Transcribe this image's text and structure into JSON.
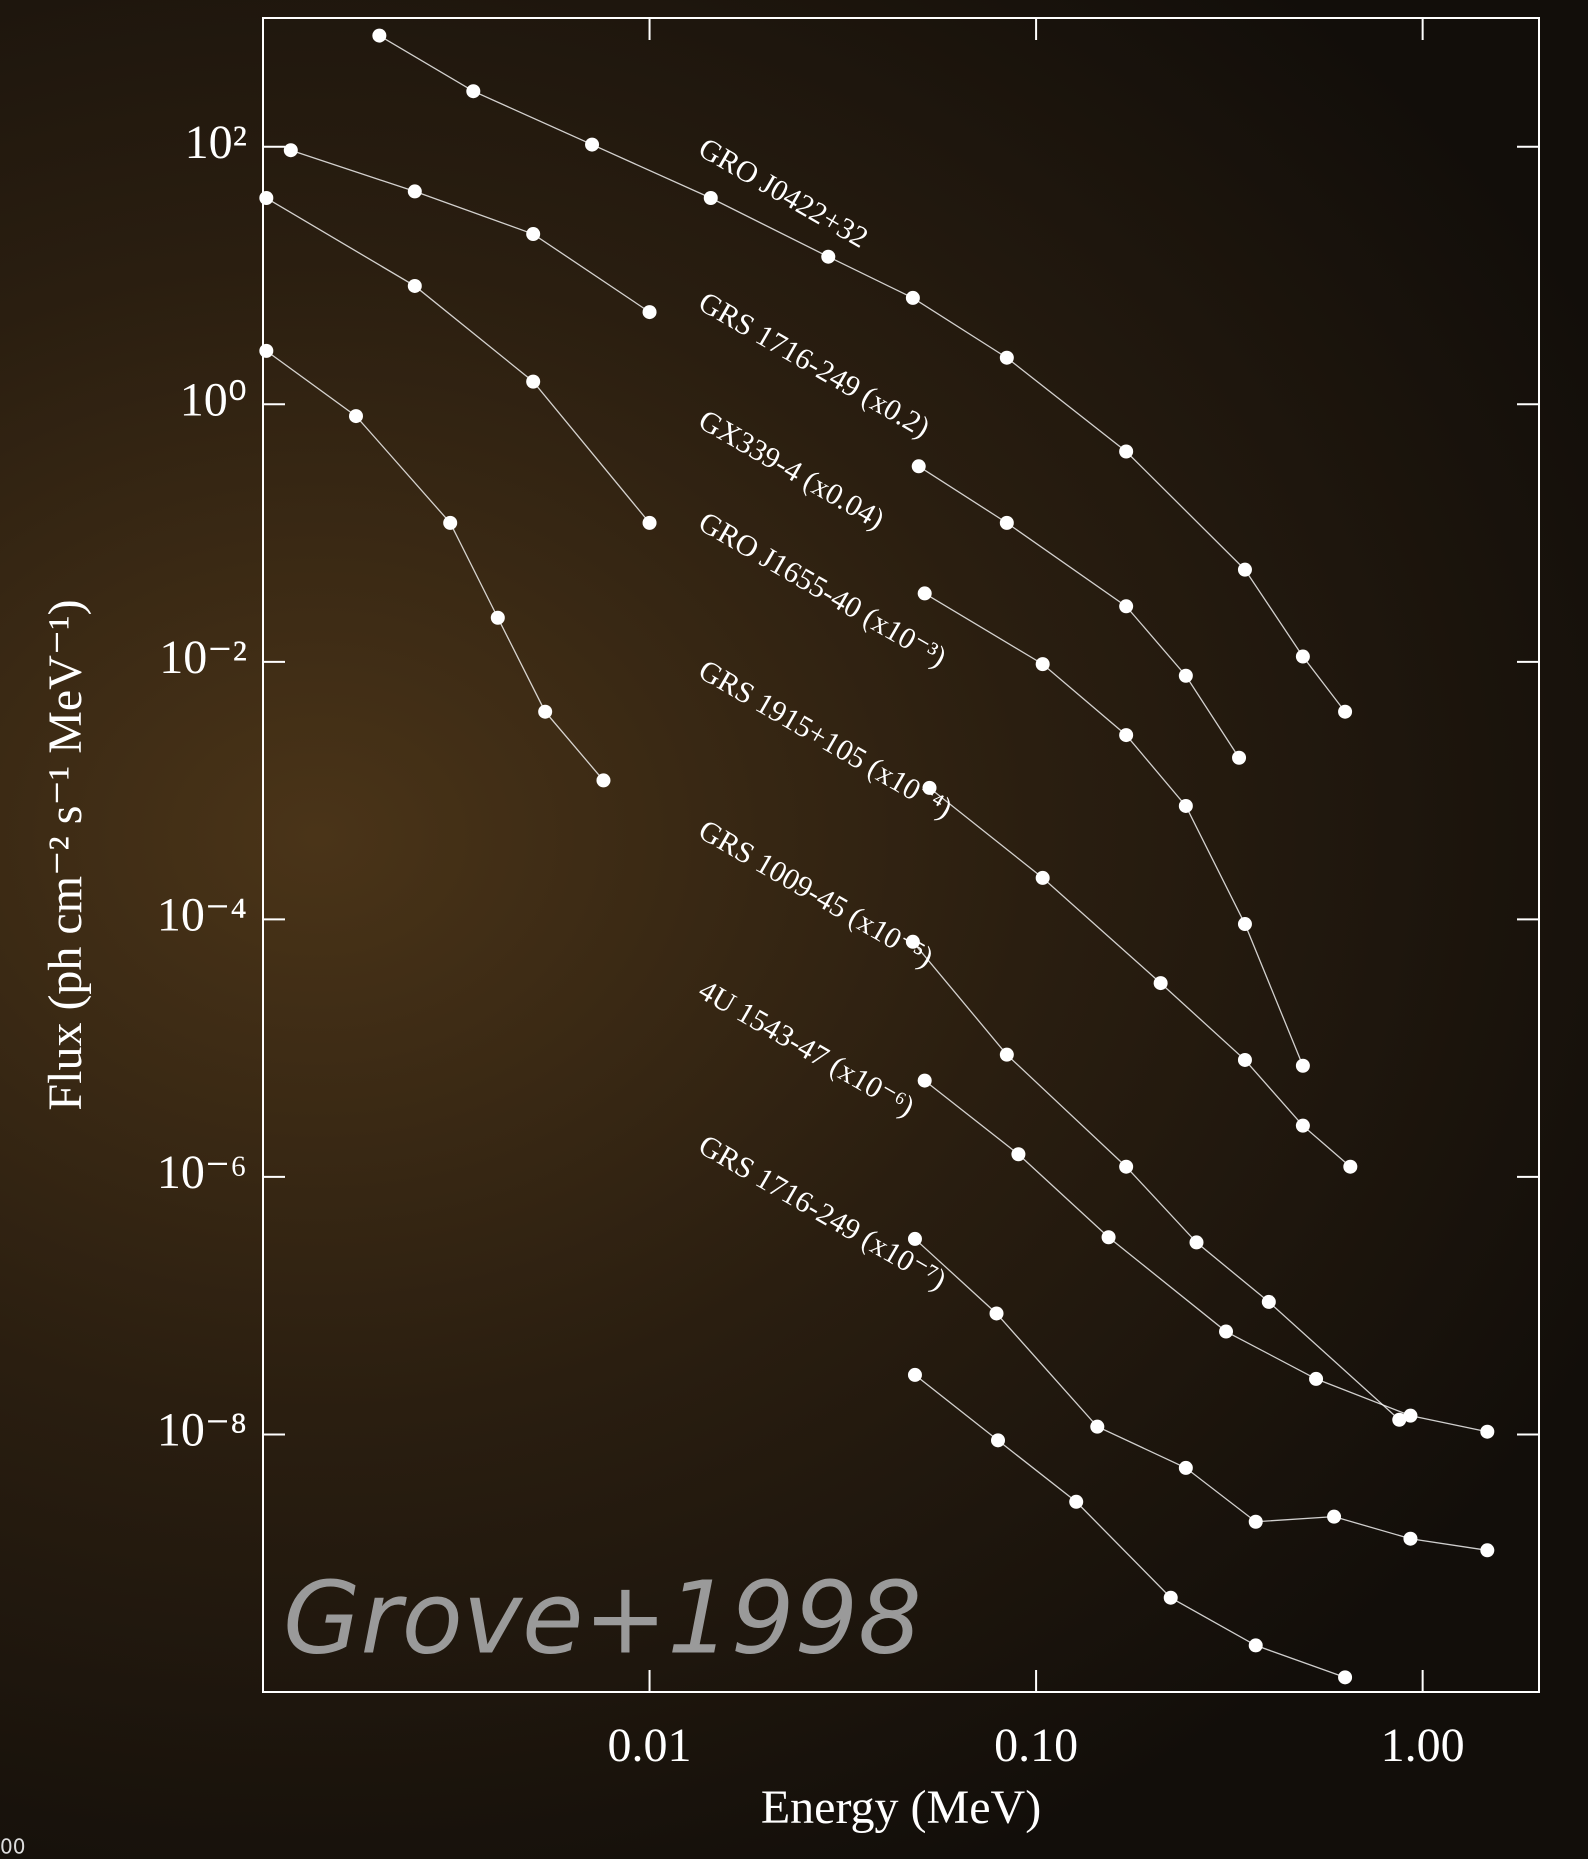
{
  "chart_data": {
    "type": "scatter",
    "xlabel": "Energy (MeV)",
    "ylabel": "Flux (ph cm⁻² s⁻¹ MeV⁻¹)",
    "annotation": "Grove+1998",
    "corner_fragment": "00",
    "xscale": "log",
    "yscale": "log",
    "xlim": [
      0.001,
      2
    ],
    "ylim": [
      1e-10,
      1000
    ],
    "xticks": [
      0.01,
      {
        "value": 0.1,
        "label": "0.10"
      },
      {
        "value": 1,
        "label": "1.00"
      }
    ],
    "yticks": [
      {
        "value": 100,
        "label": "10²"
      },
      {
        "value": 1,
        "label": "10⁰"
      },
      {
        "value": 0.01,
        "label": "10⁻²"
      },
      {
        "value": 0.0001,
        "label": "10⁻⁴"
      },
      {
        "value": 1e-06,
        "label": "10⁻⁶"
      },
      {
        "value": 1e-08,
        "label": "10⁻⁸"
      }
    ],
    "series": [
      {
        "name": "GRO J0422+32",
        "color": "#ffffff",
        "x": [
          0.002,
          0.0035,
          0.0071,
          0.0144,
          0.029,
          0.048,
          0.084,
          0.171,
          0.347,
          0.49,
          0.63
        ],
        "values": [
          730,
          270,
          104,
          40,
          14,
          6.7,
          2.3,
          0.43,
          0.052,
          0.011,
          0.0041
        ]
      },
      {
        "name": "GRS 1716-249  (x0.2)",
        "color": "#ffffff",
        "x": [
          0.00118,
          0.00247,
          0.005,
          0.01,
          0.03,
          0.0497,
          0.084,
          0.171,
          0.244,
          0.335
        ],
        "values": [
          94,
          45,
          21,
          5.2,
          null,
          0.33,
          0.12,
          0.027,
          0.0078,
          0.0018
        ]
      },
      {
        "name": "GX339-4  (x0.04)",
        "color": "#ffffff",
        "x": [
          0.00102,
          0.00247,
          0.005,
          0.01,
          0.03,
          0.0515,
          0.104,
          0.171,
          0.244,
          0.347,
          0.49
        ],
        "values": [
          40,
          8.3,
          1.5,
          0.12,
          null,
          0.034,
          0.0096,
          0.0027,
          0.00076,
          9.2e-05,
          7.3e-06
        ]
      },
      {
        "name": "GRO J1655-40  (x10⁻³)",
        "color": "#ffffff",
        "x": [
          0.00102,
          0.00174,
          0.00305,
          0.00405,
          0.00537,
          0.0076,
          0.02,
          0.053,
          0.104,
          0.21,
          0.347,
          0.49,
          0.65
        ],
        "values": [
          2.6,
          0.81,
          0.12,
          0.022,
          0.0041,
          0.0012,
          null,
          0.00105,
          0.00021,
          3.2e-05,
          8.1e-06,
          2.5e-06,
          1.2e-06
        ]
      },
      {
        "name": "GRS 1915+105  (x10⁻⁴)",
        "color": "#ffffff",
        "x": [
          0.048,
          0.084,
          0.171,
          0.26,
          0.4,
          0.87
        ],
        "values": [
          6.7e-05,
          8.9e-06,
          1.2e-06,
          3.1e-07,
          1.07e-07,
          1.3e-08
        ]
      },
      {
        "name": "GRS 1009-45  (x10⁻⁵)",
        "color": "#ffffff",
        "x": [
          0.0515,
          0.09,
          0.154,
          0.31,
          0.53,
          0.93,
          1.47
        ],
        "values": [
          5.6e-06,
          1.5e-06,
          3.4e-07,
          6.3e-08,
          2.7e-08,
          1.4e-08,
          1.05e-08
        ]
      },
      {
        "name": "4U 1543-47  (x10⁻⁶)",
        "color": "#ffffff",
        "x": [
          0.0486,
          0.079,
          0.144,
          0.244,
          0.37,
          0.59,
          0.93,
          1.47
        ],
        "values": [
          3.3e-07,
          8.7e-08,
          1.15e-08,
          5.5e-09,
          2.1e-09,
          2.3e-09,
          1.55e-09,
          1.26e-09
        ]
      },
      {
        "name": "GRS 1716-249  (x10⁻⁷)",
        "color": "#ffffff",
        "x": [
          0.0486,
          0.0797,
          0.127,
          0.223,
          0.37,
          0.63
        ],
        "values": [
          2.9e-08,
          9e-09,
          3e-09,
          5.4e-10,
          2.3e-10,
          1.3e-10
        ]
      }
    ]
  }
}
